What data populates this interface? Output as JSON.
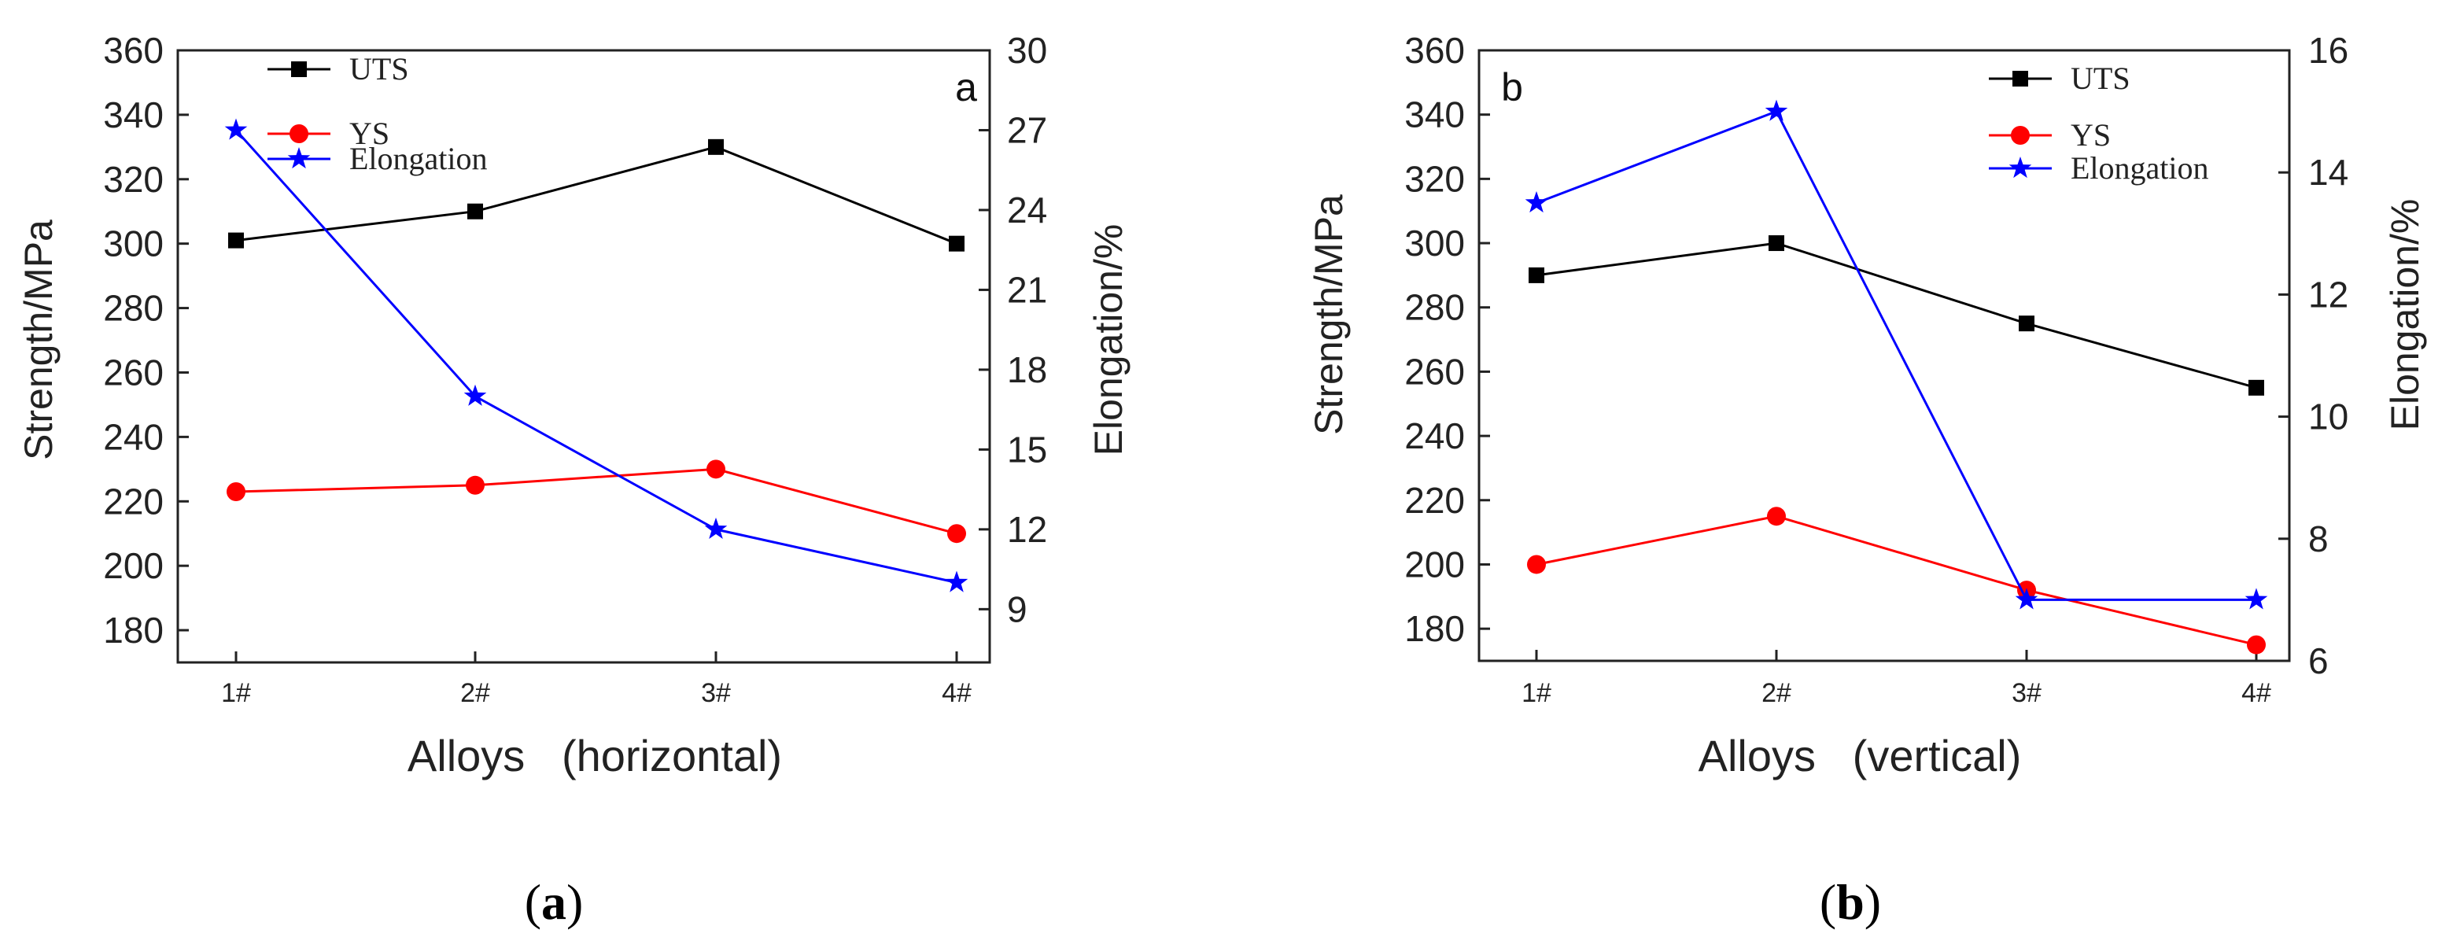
{
  "caption_a": {
    "open": "(",
    "letter": "a",
    "close": ")"
  },
  "caption_b": {
    "open": "(",
    "letter": "b",
    "close": ")"
  },
  "chart_data": [
    {
      "id": "a",
      "type": "line",
      "panel_label": "a",
      "title": "",
      "xlabel": "Alloys   (horizontal)",
      "ylabel": "Strength/MPa",
      "y2label": "Elongation/%",
      "categories": [
        "1#",
        "2#",
        "3#",
        "4#"
      ],
      "ylim": [
        170,
        360
      ],
      "yticks": [
        180,
        200,
        220,
        240,
        260,
        280,
        300,
        320,
        340,
        360
      ],
      "y2lim": [
        7,
        30
      ],
      "y2ticks": [
        9,
        12,
        15,
        18,
        21,
        24,
        27,
        30
      ],
      "legend_position": "top-left",
      "series": [
        {
          "name": "UTS",
          "axis": "left",
          "color": "#000000",
          "marker": "square",
          "values": [
            301,
            310,
            330,
            300
          ]
        },
        {
          "name": "YS",
          "axis": "left",
          "color": "#ff0000",
          "marker": "circle",
          "values": [
            223,
            225,
            230,
            210
          ]
        },
        {
          "name": "Elongation",
          "axis": "right",
          "color": "#0000ff",
          "marker": "star",
          "values": [
            27,
            17,
            12,
            10
          ]
        }
      ]
    },
    {
      "id": "b",
      "type": "line",
      "panel_label": "b",
      "title": "",
      "xlabel": "Alloys   (vertical)",
      "ylabel": "Strength/MPa",
      "y2label": "Elongation/%",
      "categories": [
        "1#",
        "2#",
        "3#",
        "4#"
      ],
      "ylim": [
        170,
        360
      ],
      "yticks": [
        180,
        200,
        220,
        240,
        260,
        280,
        300,
        320,
        340,
        360
      ],
      "y2lim": [
        6,
        16
      ],
      "y2ticks": [
        6,
        8,
        10,
        12,
        14,
        16
      ],
      "legend_position": "top-right",
      "series": [
        {
          "name": "UTS",
          "axis": "left",
          "color": "#000000",
          "marker": "square",
          "values": [
            290,
            300,
            275,
            255
          ]
        },
        {
          "name": "YS",
          "axis": "left",
          "color": "#ff0000",
          "marker": "circle",
          "values": [
            200,
            215,
            192,
            175
          ]
        },
        {
          "name": "Elongation",
          "axis": "right",
          "color": "#0000ff",
          "marker": "star",
          "values": [
            13.5,
            15,
            7,
            7
          ]
        }
      ]
    }
  ]
}
